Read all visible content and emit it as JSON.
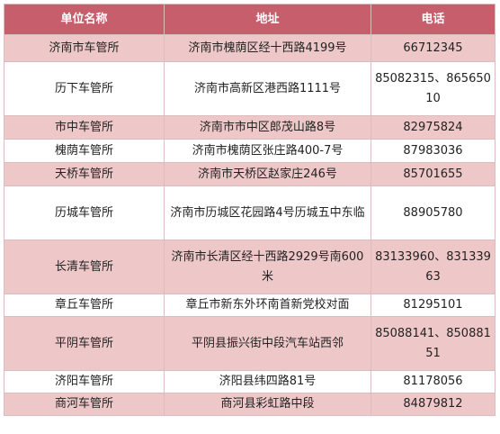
{
  "table": {
    "headers": [
      "单位名称",
      "地址",
      "电话"
    ],
    "rows": [
      {
        "name": "济南市车管所",
        "address": "济南市槐荫区经十西路4199号",
        "phone": "66712345"
      },
      {
        "name": "历下车管所",
        "address": "济南市高新区港西路1111号",
        "phone": "85082315、86565010"
      },
      {
        "name": "市中车管所",
        "address": "济南市市中区郎茂山路8号",
        "phone": "82975824"
      },
      {
        "name": "槐荫车管所",
        "address": "济南市槐荫区张庄路400-7号",
        "phone": "87983036"
      },
      {
        "name": "天桥车管所",
        "address": "济南市天桥区赵家庄246号",
        "phone": "85701655"
      },
      {
        "name": "历城车管所",
        "address": "济南市历城区花园路4号历城五中东临",
        "phone": "88905780"
      },
      {
        "name": "长清车管所",
        "address": "济南市长清区经十西路2929号南600米",
        "phone": "83133960、83133963"
      },
      {
        "name": "章丘车管所",
        "address": "章丘市新东外环南首新党校对面",
        "phone": "81295101"
      },
      {
        "name": "平阴车管所",
        "address": "平阴县振兴街中段汽车站西邻",
        "phone": "85088141、85088151"
      },
      {
        "name": "济阳车管所",
        "address": "济阳县纬四路81号",
        "phone": "81178056"
      },
      {
        "name": "商河车管所",
        "address": "商河县彩虹路中段",
        "phone": "84879812"
      }
    ]
  }
}
